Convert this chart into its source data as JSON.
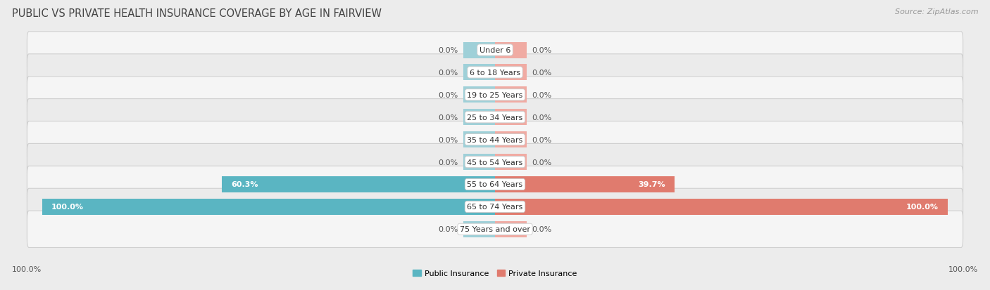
{
  "title": "PUBLIC VS PRIVATE HEALTH INSURANCE COVERAGE BY AGE IN FAIRVIEW",
  "source": "Source: ZipAtlas.com",
  "categories": [
    "Under 6",
    "6 to 18 Years",
    "19 to 25 Years",
    "25 to 34 Years",
    "35 to 44 Years",
    "45 to 54 Years",
    "55 to 64 Years",
    "65 to 74 Years",
    "75 Years and over"
  ],
  "public_values": [
    0.0,
    0.0,
    0.0,
    0.0,
    0.0,
    0.0,
    60.3,
    100.0,
    0.0
  ],
  "private_values": [
    0.0,
    0.0,
    0.0,
    0.0,
    0.0,
    0.0,
    39.7,
    100.0,
    0.0
  ],
  "public_color": "#5ab5c2",
  "private_color": "#e07b6e",
  "public_color_zero": "#9fd0d8",
  "private_color_zero": "#f0aba3",
  "bg_color": "#ececec",
  "row_bg_even": "#f5f5f5",
  "row_bg_odd": "#ebebeb",
  "xlim": 100.0,
  "stub_val": 7.0,
  "legend_public": "Public Insurance",
  "legend_private": "Private Insurance",
  "title_fontsize": 10.5,
  "source_fontsize": 8,
  "value_fontsize": 8,
  "category_fontsize": 8,
  "axis_label_fontsize": 8
}
